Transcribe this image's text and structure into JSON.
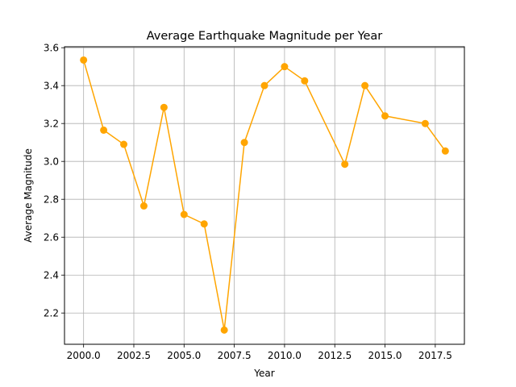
{
  "chart_data": {
    "type": "line",
    "title": "Average Earthquake Magnitude per Year",
    "xlabel": "Year",
    "ylabel": "Average Magnitude",
    "xlim": [
      1999.05,
      2018.95
    ],
    "ylim": [
      2.035,
      3.605
    ],
    "xticks": [
      2000.0,
      2002.5,
      2005.0,
      2007.5,
      2010.0,
      2012.5,
      2015.0,
      2017.5
    ],
    "xtick_labels": [
      "2000.0",
      "2002.5",
      "2005.0",
      "2007.5",
      "2010.0",
      "2012.5",
      "2015.0",
      "2017.5"
    ],
    "yticks": [
      2.2,
      2.4,
      2.6,
      2.8,
      3.0,
      3.2,
      3.4,
      3.6
    ],
    "ytick_labels": [
      "2.2",
      "2.4",
      "2.6",
      "2.8",
      "3.0",
      "3.2",
      "3.4",
      "3.6"
    ],
    "grid": true,
    "legend": false,
    "color": "#ffa500",
    "series": [
      {
        "x": [
          2000,
          2001,
          2002,
          2003,
          2004,
          2005,
          2006,
          2007,
          2008,
          2009,
          2010,
          2011,
          2013,
          2014,
          2015,
          2017,
          2018
        ],
        "y": [
          3.535,
          3.165,
          3.09,
          2.765,
          3.285,
          2.72,
          2.67,
          2.11,
          3.1,
          3.4,
          3.5,
          3.425,
          2.985,
          3.4,
          3.24,
          3.2,
          3.055
        ]
      }
    ]
  }
}
